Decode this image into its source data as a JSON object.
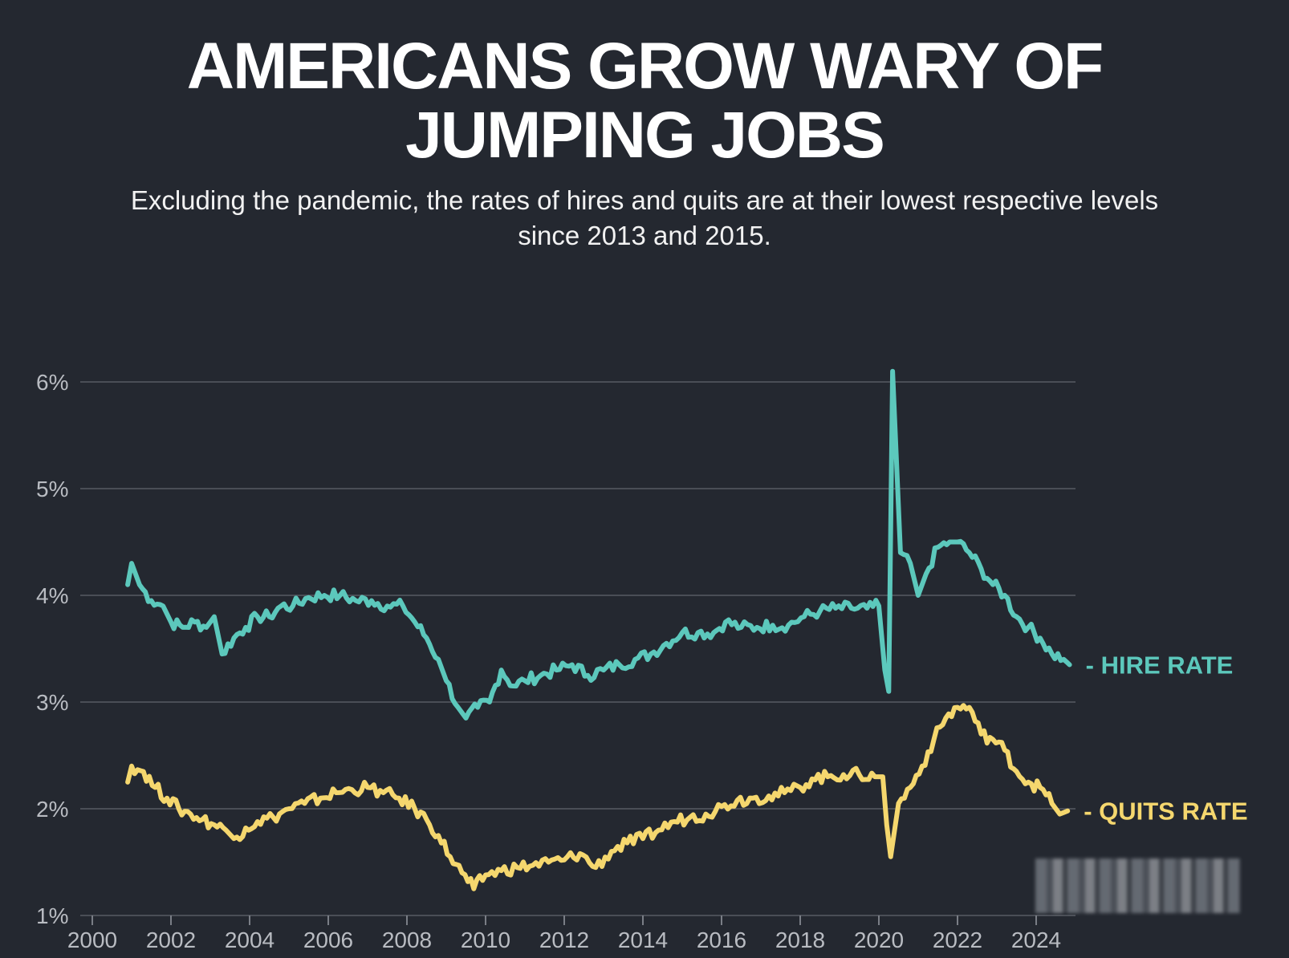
{
  "header": {
    "title_line1": "AMERICANS GROW WARY OF",
    "title_line2": "JUMPING JOBS",
    "subtitle_line1": "Excluding the pandemic, the rates of hires and quits are at their lowest respective levels",
    "subtitle_line2": "since 2013 and 2015."
  },
  "colors": {
    "background": "#242830",
    "hire": "#5cc8bc",
    "quits": "#f5d76e",
    "grid": "#4a4e56"
  },
  "chart_data": {
    "type": "line",
    "title": "AMERICANS GROW WARY OF JUMPING JOBS",
    "subtitle": "Excluding the pandemic, the rates of hires and quits are at their lowest respective levels since 2013 and 2015.",
    "xlabel": "",
    "ylabel": "",
    "xlim": [
      2000,
      2025
    ],
    "ylim": [
      1,
      6
    ],
    "x_ticks": [
      2000,
      2002,
      2004,
      2006,
      2008,
      2010,
      2012,
      2014,
      2016,
      2018,
      2020,
      2022,
      2024
    ],
    "x_tick_labels": [
      "2000",
      "2002",
      "2004",
      "2006",
      "2008",
      "2010",
      "2012",
      "2014",
      "2016",
      "2018",
      "2020",
      "2022",
      "2024"
    ],
    "y_ticks": [
      1,
      2,
      3,
      4,
      5,
      6
    ],
    "y_tick_labels": [
      "1%",
      "2%",
      "3%",
      "4%",
      "5%",
      "6%"
    ],
    "grid": "horizontal",
    "legend": "inline labels at right end of each line",
    "series": [
      {
        "name": "HIRE RATE",
        "label": "- HIRE RATE",
        "color": "#5cc8bc",
        "points": [
          [
            2000.9,
            4.1
          ],
          [
            2001.0,
            4.3
          ],
          [
            2001.2,
            4.1
          ],
          [
            2001.5,
            3.95
          ],
          [
            2001.8,
            3.9
          ],
          [
            2002.0,
            3.75
          ],
          [
            2002.3,
            3.7
          ],
          [
            2002.6,
            3.75
          ],
          [
            2002.9,
            3.7
          ],
          [
            2003.1,
            3.8
          ],
          [
            2003.3,
            3.45
          ],
          [
            2003.6,
            3.6
          ],
          [
            2003.9,
            3.7
          ],
          [
            2004.2,
            3.8
          ],
          [
            2004.5,
            3.8
          ],
          [
            2004.8,
            3.9
          ],
          [
            2005.1,
            3.9
          ],
          [
            2005.5,
            3.98
          ],
          [
            2005.9,
            4.0
          ],
          [
            2006.3,
            4.0
          ],
          [
            2006.7,
            3.95
          ],
          [
            2007.1,
            3.95
          ],
          [
            2007.5,
            3.9
          ],
          [
            2007.9,
            3.9
          ],
          [
            2008.2,
            3.75
          ],
          [
            2008.5,
            3.6
          ],
          [
            2008.8,
            3.4
          ],
          [
            2009.0,
            3.2
          ],
          [
            2009.3,
            2.95
          ],
          [
            2009.5,
            2.85
          ],
          [
            2009.8,
            2.95
          ],
          [
            2010.1,
            3.0
          ],
          [
            2010.4,
            3.3
          ],
          [
            2010.7,
            3.15
          ],
          [
            2011.0,
            3.2
          ],
          [
            2011.4,
            3.25
          ],
          [
            2011.8,
            3.3
          ],
          [
            2012.2,
            3.35
          ],
          [
            2012.6,
            3.25
          ],
          [
            2013.0,
            3.3
          ],
          [
            2013.4,
            3.35
          ],
          [
            2013.8,
            3.4
          ],
          [
            2014.2,
            3.45
          ],
          [
            2014.6,
            3.55
          ],
          [
            2015.0,
            3.65
          ],
          [
            2015.4,
            3.65
          ],
          [
            2015.8,
            3.65
          ],
          [
            2016.1,
            3.75
          ],
          [
            2016.5,
            3.7
          ],
          [
            2016.9,
            3.7
          ],
          [
            2017.3,
            3.72
          ],
          [
            2017.7,
            3.72
          ],
          [
            2018.1,
            3.8
          ],
          [
            2018.5,
            3.85
          ],
          [
            2018.9,
            3.88
          ],
          [
            2019.3,
            3.88
          ],
          [
            2019.7,
            3.88
          ],
          [
            2020.0,
            3.9
          ],
          [
            2020.15,
            3.3
          ],
          [
            2020.25,
            3.1
          ],
          [
            2020.35,
            6.1
          ],
          [
            2020.55,
            4.4
          ],
          [
            2020.8,
            4.3
          ],
          [
            2021.0,
            4.0
          ],
          [
            2021.2,
            4.2
          ],
          [
            2021.5,
            4.45
          ],
          [
            2021.8,
            4.5
          ],
          [
            2022.0,
            4.5
          ],
          [
            2022.3,
            4.4
          ],
          [
            2022.6,
            4.25
          ],
          [
            2022.9,
            4.1
          ],
          [
            2023.2,
            4.0
          ],
          [
            2023.5,
            3.8
          ],
          [
            2023.8,
            3.7
          ],
          [
            2024.1,
            3.6
          ],
          [
            2024.4,
            3.45
          ],
          [
            2024.7,
            3.4
          ],
          [
            2024.85,
            3.35
          ]
        ]
      },
      {
        "name": "QUITS RATE",
        "label": "- QUITS RATE",
        "color": "#f5d76e",
        "points": [
          [
            2000.9,
            2.25
          ],
          [
            2001.0,
            2.4
          ],
          [
            2001.3,
            2.35
          ],
          [
            2001.6,
            2.2
          ],
          [
            2001.9,
            2.1
          ],
          [
            2002.2,
            2.0
          ],
          [
            2002.5,
            1.95
          ],
          [
            2002.8,
            1.9
          ],
          [
            2003.1,
            1.85
          ],
          [
            2003.4,
            1.8
          ],
          [
            2003.6,
            1.72
          ],
          [
            2003.9,
            1.82
          ],
          [
            2004.2,
            1.88
          ],
          [
            2004.6,
            1.92
          ],
          [
            2005.0,
            2.0
          ],
          [
            2005.4,
            2.05
          ],
          [
            2005.8,
            2.1
          ],
          [
            2006.2,
            2.15
          ],
          [
            2006.6,
            2.18
          ],
          [
            2007.0,
            2.2
          ],
          [
            2007.4,
            2.15
          ],
          [
            2007.8,
            2.1
          ],
          [
            2008.2,
            2.0
          ],
          [
            2008.5,
            1.9
          ],
          [
            2008.8,
            1.75
          ],
          [
            2009.1,
            1.55
          ],
          [
            2009.4,
            1.4
          ],
          [
            2009.7,
            1.25
          ],
          [
            2010.0,
            1.38
          ],
          [
            2010.4,
            1.42
          ],
          [
            2010.8,
            1.45
          ],
          [
            2011.2,
            1.47
          ],
          [
            2011.6,
            1.5
          ],
          [
            2012.0,
            1.52
          ],
          [
            2012.4,
            1.58
          ],
          [
            2012.8,
            1.45
          ],
          [
            2013.2,
            1.6
          ],
          [
            2013.6,
            1.68
          ],
          [
            2014.0,
            1.72
          ],
          [
            2014.4,
            1.8
          ],
          [
            2014.8,
            1.88
          ],
          [
            2015.2,
            1.92
          ],
          [
            2015.6,
            1.95
          ],
          [
            2016.0,
            2.02
          ],
          [
            2016.4,
            2.08
          ],
          [
            2016.8,
            2.1
          ],
          [
            2017.2,
            2.12
          ],
          [
            2017.6,
            2.15
          ],
          [
            2018.0,
            2.2
          ],
          [
            2018.3,
            2.28
          ],
          [
            2018.7,
            2.3
          ],
          [
            2019.1,
            2.32
          ],
          [
            2019.5,
            2.32
          ],
          [
            2019.9,
            2.3
          ],
          [
            2020.1,
            2.3
          ],
          [
            2020.2,
            1.85
          ],
          [
            2020.3,
            1.55
          ],
          [
            2020.5,
            2.05
          ],
          [
            2020.8,
            2.2
          ],
          [
            2021.1,
            2.4
          ],
          [
            2021.4,
            2.65
          ],
          [
            2021.7,
            2.85
          ],
          [
            2022.0,
            2.95
          ],
          [
            2022.3,
            2.95
          ],
          [
            2022.6,
            2.7
          ],
          [
            2022.9,
            2.65
          ],
          [
            2023.2,
            2.55
          ],
          [
            2023.5,
            2.35
          ],
          [
            2023.8,
            2.25
          ],
          [
            2024.1,
            2.2
          ],
          [
            2024.4,
            2.05
          ],
          [
            2024.6,
            1.95
          ],
          [
            2024.8,
            1.98
          ]
        ]
      }
    ]
  }
}
